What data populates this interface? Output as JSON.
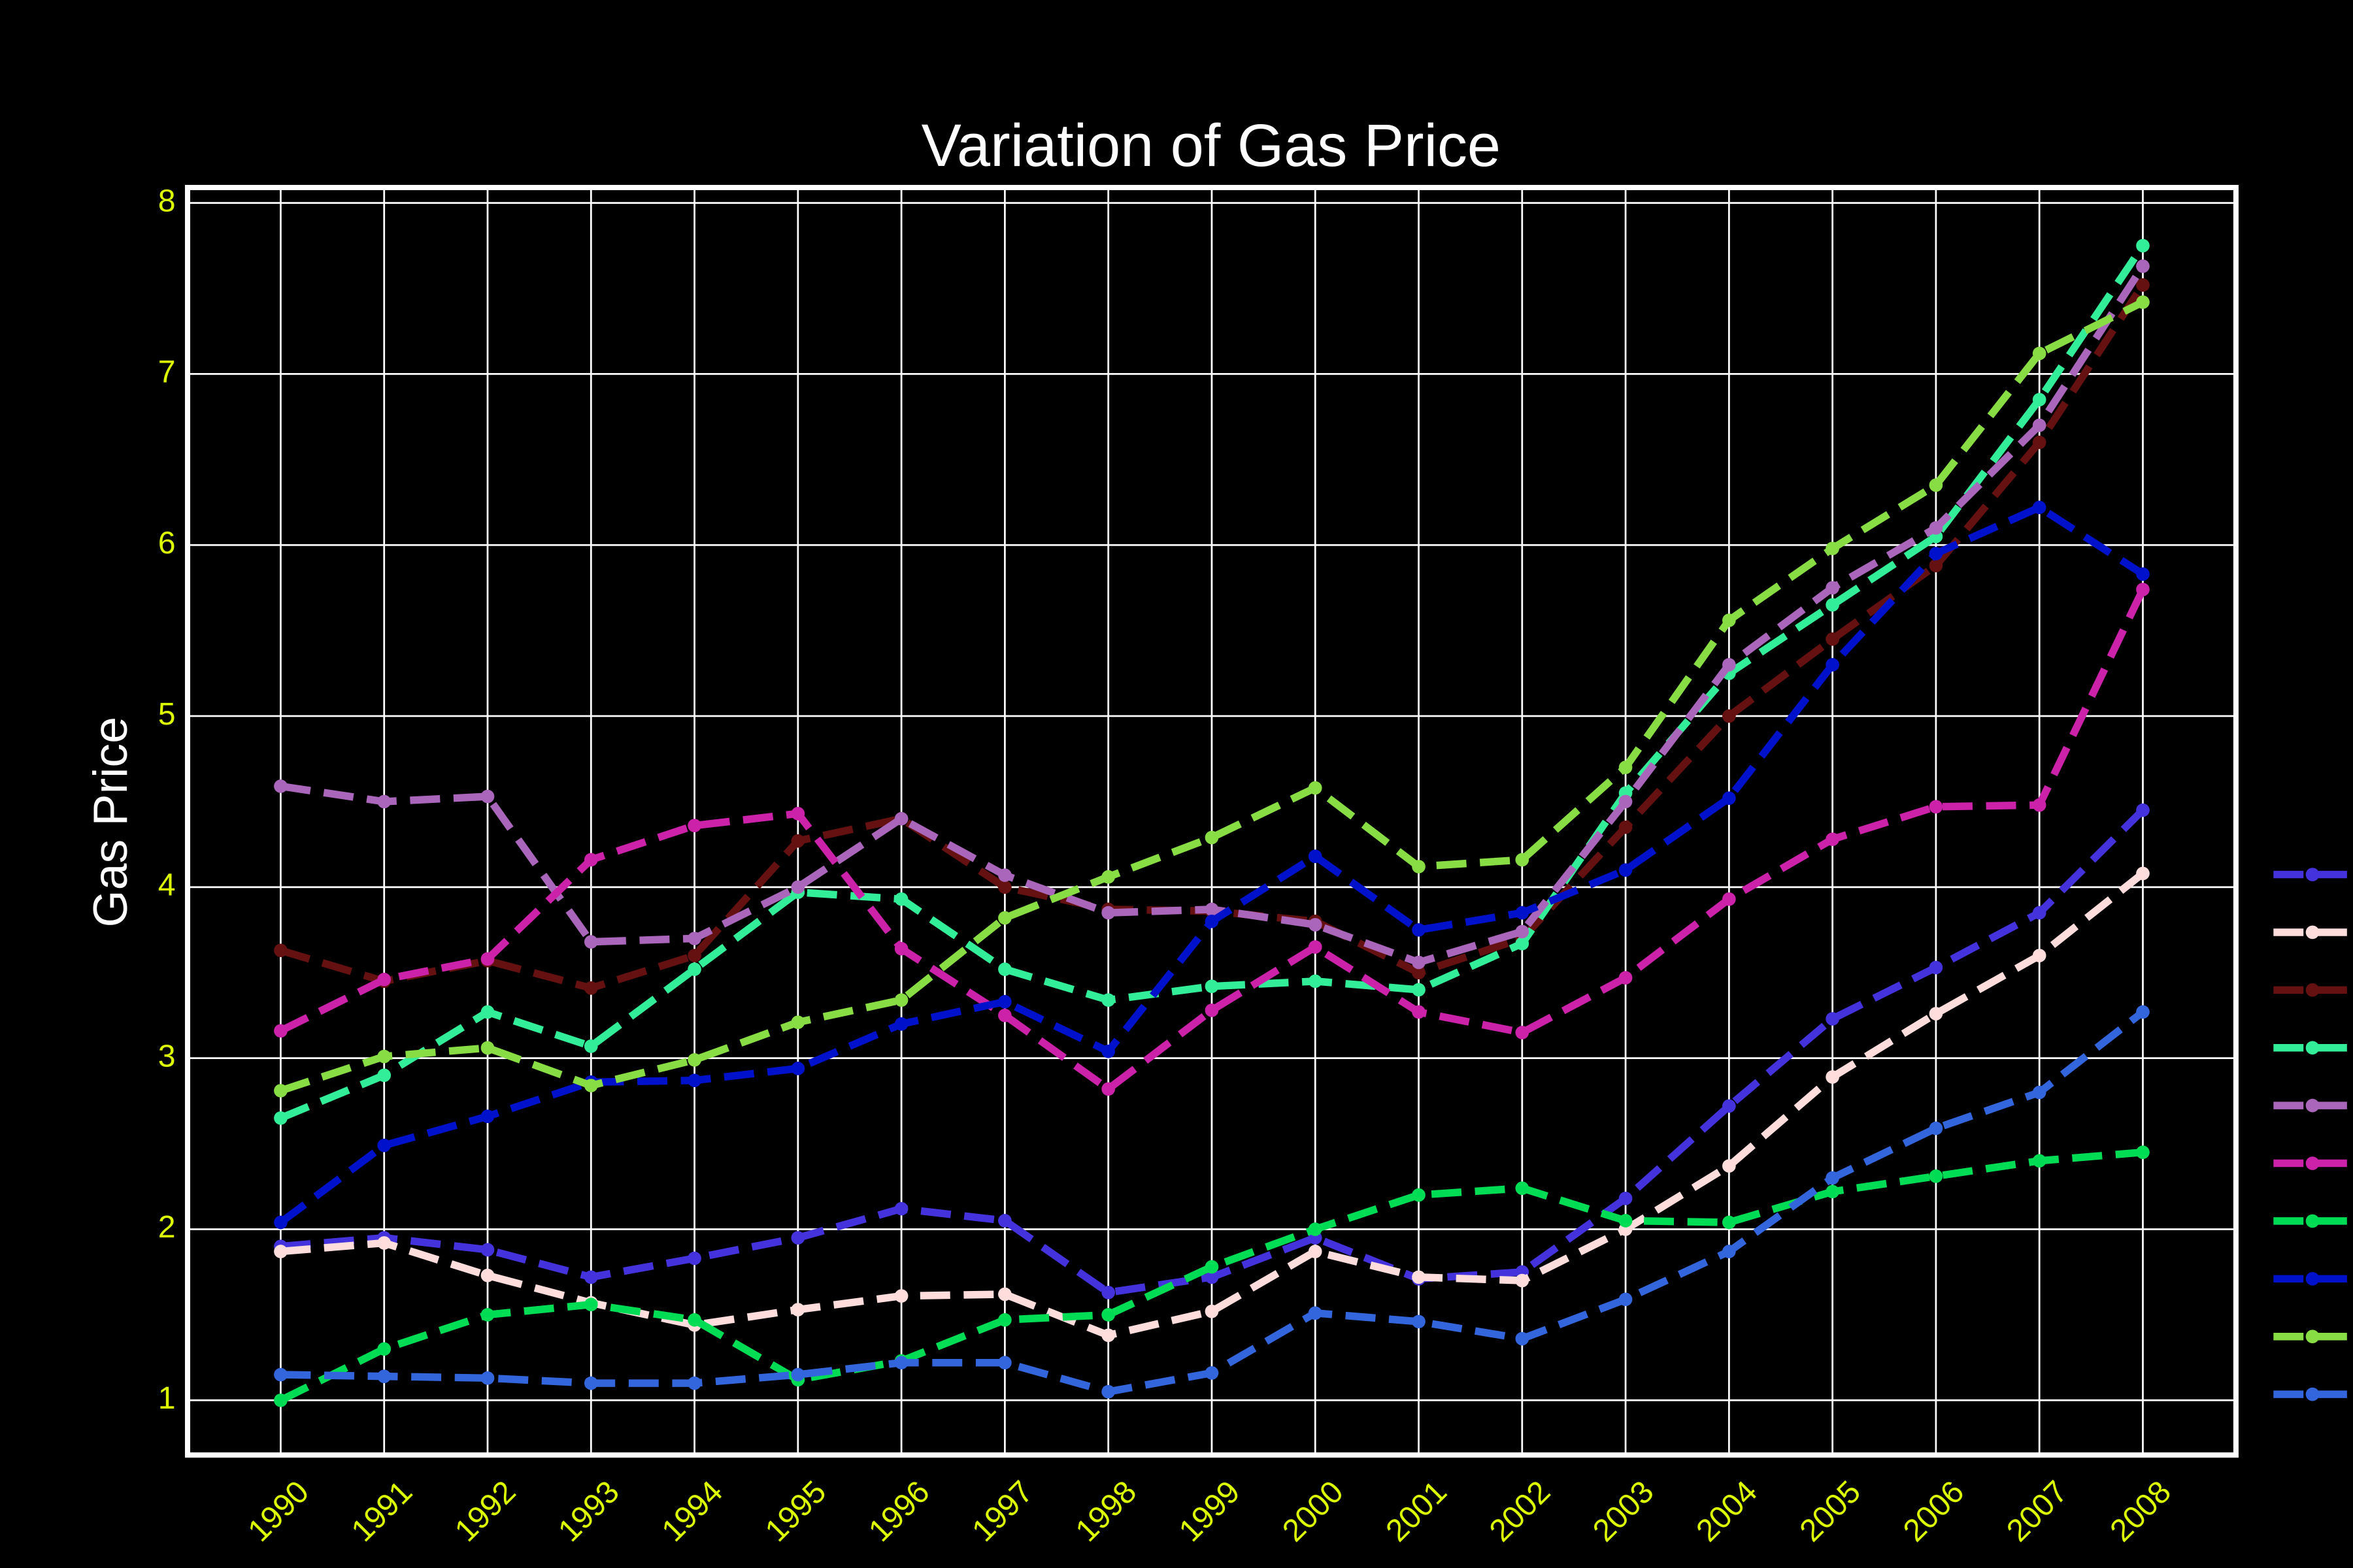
{
  "chart_data": {
    "type": "line",
    "title": "Variation of Gas Price",
    "ylabel": "Gas Price",
    "x": [
      1990,
      1991,
      1992,
      1993,
      1994,
      1995,
      1996,
      1997,
      1998,
      1999,
      2000,
      2001,
      2002,
      2003,
      2004,
      2005,
      2006,
      2007,
      2008
    ],
    "xlim": [
      1989.1,
      2008.9
    ],
    "xticks": [
      1990,
      1991,
      1992,
      1993,
      1994,
      1995,
      1996,
      1997,
      1998,
      1999,
      2000,
      2001,
      2002,
      2003,
      2004,
      2005,
      2006,
      2007,
      2008
    ],
    "ylim": [
      0.68,
      8.09
    ],
    "yticks": [
      1,
      2,
      3,
      4,
      5,
      6,
      7,
      8
    ],
    "grid": true,
    "series": [
      {
        "color": "#4433dd",
        "values": [
          1.9,
          1.95,
          1.88,
          1.72,
          1.83,
          1.95,
          2.12,
          2.05,
          1.63,
          1.72,
          1.95,
          1.71,
          1.75,
          2.18,
          2.72,
          3.23,
          3.53,
          3.85,
          4.45
        ]
      },
      {
        "color": "#ffdddd",
        "values": [
          1.87,
          1.92,
          1.73,
          1.57,
          1.44,
          1.53,
          1.61,
          1.62,
          1.38,
          1.52,
          1.87,
          1.72,
          1.7,
          2.0,
          2.37,
          2.89,
          3.26,
          3.6,
          4.08
        ]
      },
      {
        "color": "#661111",
        "values": [
          3.63,
          3.45,
          3.57,
          3.41,
          3.6,
          4.27,
          4.4,
          4.0,
          3.87,
          3.86,
          3.8,
          3.5,
          3.7,
          4.35,
          5.0,
          5.45,
          5.88,
          6.6,
          7.52
        ]
      },
      {
        "color": "#33ee99",
        "values": [
          2.65,
          2.9,
          3.27,
          3.07,
          3.52,
          3.97,
          3.93,
          3.52,
          3.34,
          3.42,
          3.45,
          3.4,
          3.67,
          4.55,
          5.25,
          5.65,
          6.05,
          6.85,
          7.75
        ]
      },
      {
        "color": "#aa66bb",
        "values": [
          4.59,
          4.5,
          4.53,
          3.68,
          3.7,
          4.0,
          4.4,
          4.07,
          3.85,
          3.87,
          3.78,
          3.56,
          3.74,
          4.5,
          5.3,
          5.75,
          6.1,
          6.7,
          7.63
        ]
      },
      {
        "color": "#cc22aa",
        "values": [
          3.16,
          3.46,
          3.58,
          4.16,
          4.36,
          4.43,
          3.64,
          3.25,
          2.82,
          3.28,
          3.65,
          3.27,
          3.15,
          3.47,
          3.93,
          4.28,
          4.47,
          4.48,
          5.74
        ]
      },
      {
        "color": "#00dd55",
        "values": [
          1.0,
          1.3,
          1.5,
          1.56,
          1.47,
          1.12,
          1.23,
          1.47,
          1.5,
          1.78,
          2.0,
          2.2,
          2.24,
          2.05,
          2.04,
          2.22,
          2.31,
          2.4,
          2.45
        ]
      },
      {
        "color": "#0011cc",
        "values": [
          2.04,
          2.49,
          2.66,
          2.86,
          2.87,
          2.94,
          3.2,
          3.33,
          3.04,
          3.8,
          4.18,
          3.75,
          3.85,
          4.1,
          4.52,
          5.3,
          5.95,
          6.22,
          5.83
        ]
      },
      {
        "color": "#88dd44",
        "values": [
          2.81,
          3.01,
          3.06,
          2.84,
          2.99,
          3.21,
          3.34,
          3.82,
          4.06,
          4.29,
          4.58,
          4.12,
          4.16,
          4.7,
          5.56,
          5.98,
          6.35,
          7.12,
          7.42
        ]
      },
      {
        "color": "#3366dd",
        "values": [
          1.15,
          1.14,
          1.13,
          1.1,
          1.1,
          1.15,
          1.22,
          1.22,
          1.05,
          1.16,
          1.51,
          1.46,
          1.36,
          1.59,
          1.87,
          2.3,
          2.59,
          2.8,
          3.27
        ]
      }
    ]
  }
}
